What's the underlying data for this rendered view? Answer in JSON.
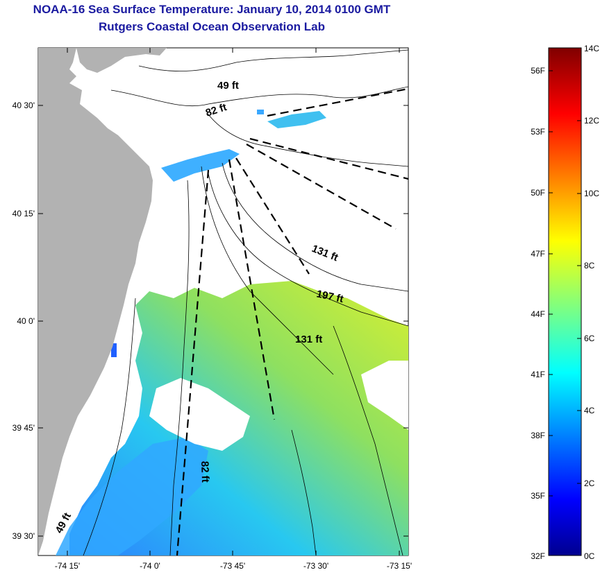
{
  "title": "NOAA-16 Sea Surface Temperature:  January 10, 2014 0100 GMT",
  "subtitle": "Rutgers Coastal Ocean Observation Lab",
  "map": {
    "lat_ticks": [
      "40 30'",
      "40 15'",
      "40 0'",
      "39 45'",
      "39 30'"
    ],
    "lon_ticks": [
      "-74 15'",
      "-74 0'",
      "-73 45'",
      "-73 30'",
      "-73 15'"
    ],
    "isobaths": [
      {
        "id": "49-north",
        "label": "49 ft"
      },
      {
        "id": "82-north",
        "label": "82 ft"
      },
      {
        "id": "131-mid",
        "label": "131 ft"
      },
      {
        "id": "197",
        "label": "197 ft"
      },
      {
        "id": "131-south",
        "label": "131 ft"
      },
      {
        "id": "82-south",
        "label": "82 ft"
      },
      {
        "id": "49-south",
        "label": "49 ft"
      }
    ]
  },
  "colorbar": {
    "celsius": [
      "14C",
      "12C",
      "10C",
      "8C",
      "6C",
      "4C",
      "2C",
      "0C"
    ],
    "fahrenheit": [
      "56F",
      "53F",
      "50F",
      "47F",
      "44F",
      "41F",
      "38F",
      "35F",
      "32F"
    ]
  },
  "colors": {
    "title": "#1a1aa0",
    "land": "#b2b2b2",
    "cloud": "#ffffff"
  }
}
